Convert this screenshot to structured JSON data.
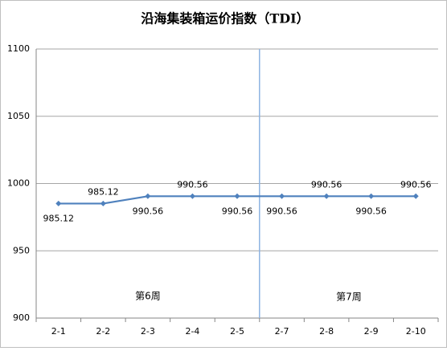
{
  "chart_data": {
    "type": "line",
    "title": "沿海集装箱运价指数（TDI）",
    "categories": [
      "2-1",
      "2-2",
      "2-3",
      "2-4",
      "2-5",
      "2-7",
      "2-8",
      "2-9",
      "2-10"
    ],
    "values": [
      985.12,
      985.12,
      990.56,
      990.56,
      990.56,
      990.56,
      990.56,
      990.56,
      990.56
    ],
    "color": "#4f81bd",
    "ylim": [
      900,
      1100
    ],
    "yticks": [
      900,
      950,
      1000,
      1050,
      1100
    ],
    "grid": true,
    "annotations": [
      "第6周",
      "第7周"
    ]
  }
}
